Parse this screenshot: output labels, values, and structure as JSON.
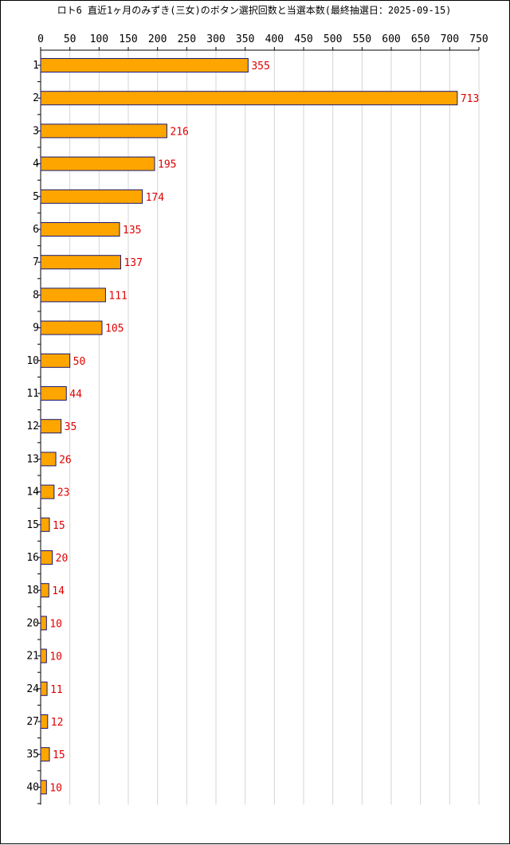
{
  "chart_data": {
    "type": "bar",
    "orientation": "horizontal",
    "title": "ロト6 直近1ヶ月のみずき(三女)のボタン選択回数と当選本数(最終抽選日：2025-09-15)",
    "categories": [
      "1",
      "2",
      "3",
      "4",
      "5",
      "6",
      "7",
      "8",
      "9",
      "10",
      "11",
      "12",
      "13",
      "14",
      "15",
      "16",
      "18",
      "20",
      "21",
      "24",
      "27",
      "35",
      "40"
    ],
    "values": [
      355,
      713,
      216,
      195,
      174,
      135,
      137,
      111,
      105,
      50,
      44,
      35,
      26,
      23,
      15,
      20,
      14,
      10,
      10,
      11,
      12,
      15,
      10
    ],
    "xlim": [
      0,
      750
    ],
    "xticks": [
      "0",
      "50",
      "100",
      "150",
      "200",
      "250",
      "300",
      "350",
      "400",
      "450",
      "500",
      "550",
      "600",
      "650",
      "700",
      "750"
    ],
    "xlabel": "",
    "ylabel": "",
    "x_axis_position": "top",
    "grid": true,
    "bar_color": "#FFA500",
    "bar_edge_color": "#191970",
    "value_label_color": "#E00000"
  }
}
